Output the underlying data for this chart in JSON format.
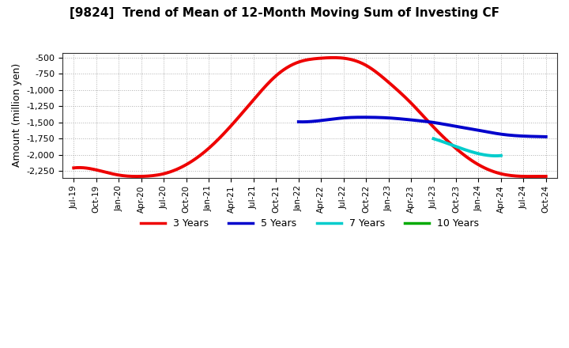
{
  "title": "[9824]  Trend of Mean of 12-Month Moving Sum of Investing CF",
  "ylabel": "Amount (million yen)",
  "background_color": "#ffffff",
  "plot_bg_color": "#ffffff",
  "grid_color": "#b0b0b0",
  "ylim": [
    -2350,
    -430
  ],
  "yticks": [
    -2250,
    -2000,
    -1750,
    -1500,
    -1250,
    -1000,
    -750,
    -500
  ],
  "x_tick_labels": [
    "Jul-19",
    "Oct-19",
    "Jan-20",
    "Apr-20",
    "Jul-20",
    "Oct-20",
    "Jan-21",
    "Apr-21",
    "Jul-21",
    "Oct-21",
    "Jan-22",
    "Apr-22",
    "Jul-22",
    "Oct-22",
    "Jan-23",
    "Apr-23",
    "Jul-23",
    "Oct-23",
    "Jan-24",
    "Apr-24",
    "Jul-24",
    "Oct-24"
  ],
  "series_3y": {
    "color": "#ee0000",
    "linewidth": 2.8,
    "x": [
      0,
      1,
      2,
      3,
      4,
      5,
      6,
      7,
      8,
      9,
      10,
      11,
      12,
      13,
      14,
      15,
      16,
      17,
      18,
      19,
      20,
      21
    ],
    "y": [
      -2200,
      -2230,
      -2310,
      -2330,
      -2290,
      -2150,
      -1900,
      -1550,
      -1150,
      -780,
      -570,
      -510,
      -510,
      -620,
      -880,
      -1200,
      -1570,
      -1900,
      -2150,
      -2290,
      -2330,
      -2330
    ]
  },
  "series_5y": {
    "color": "#0000cc",
    "linewidth": 2.8,
    "x": [
      10,
      11,
      12,
      13,
      14,
      15,
      16,
      17,
      18,
      19,
      20,
      21
    ],
    "y": [
      -1490,
      -1470,
      -1430,
      -1420,
      -1430,
      -1460,
      -1500,
      -1560,
      -1620,
      -1680,
      -1710,
      -1720
    ]
  },
  "series_7y": {
    "color": "#00cccc",
    "linewidth": 2.8,
    "x": [
      16,
      17,
      18,
      19
    ],
    "y": [
      -1750,
      -1870,
      -1980,
      -2010
    ]
  },
  "series_10y": {
    "color": "#00aa00",
    "linewidth": 2.8,
    "x": [],
    "y": []
  },
  "legend_labels": [
    "3 Years",
    "5 Years",
    "7 Years",
    "10 Years"
  ],
  "legend_colors": [
    "#ee0000",
    "#0000cc",
    "#00cccc",
    "#00aa00"
  ]
}
